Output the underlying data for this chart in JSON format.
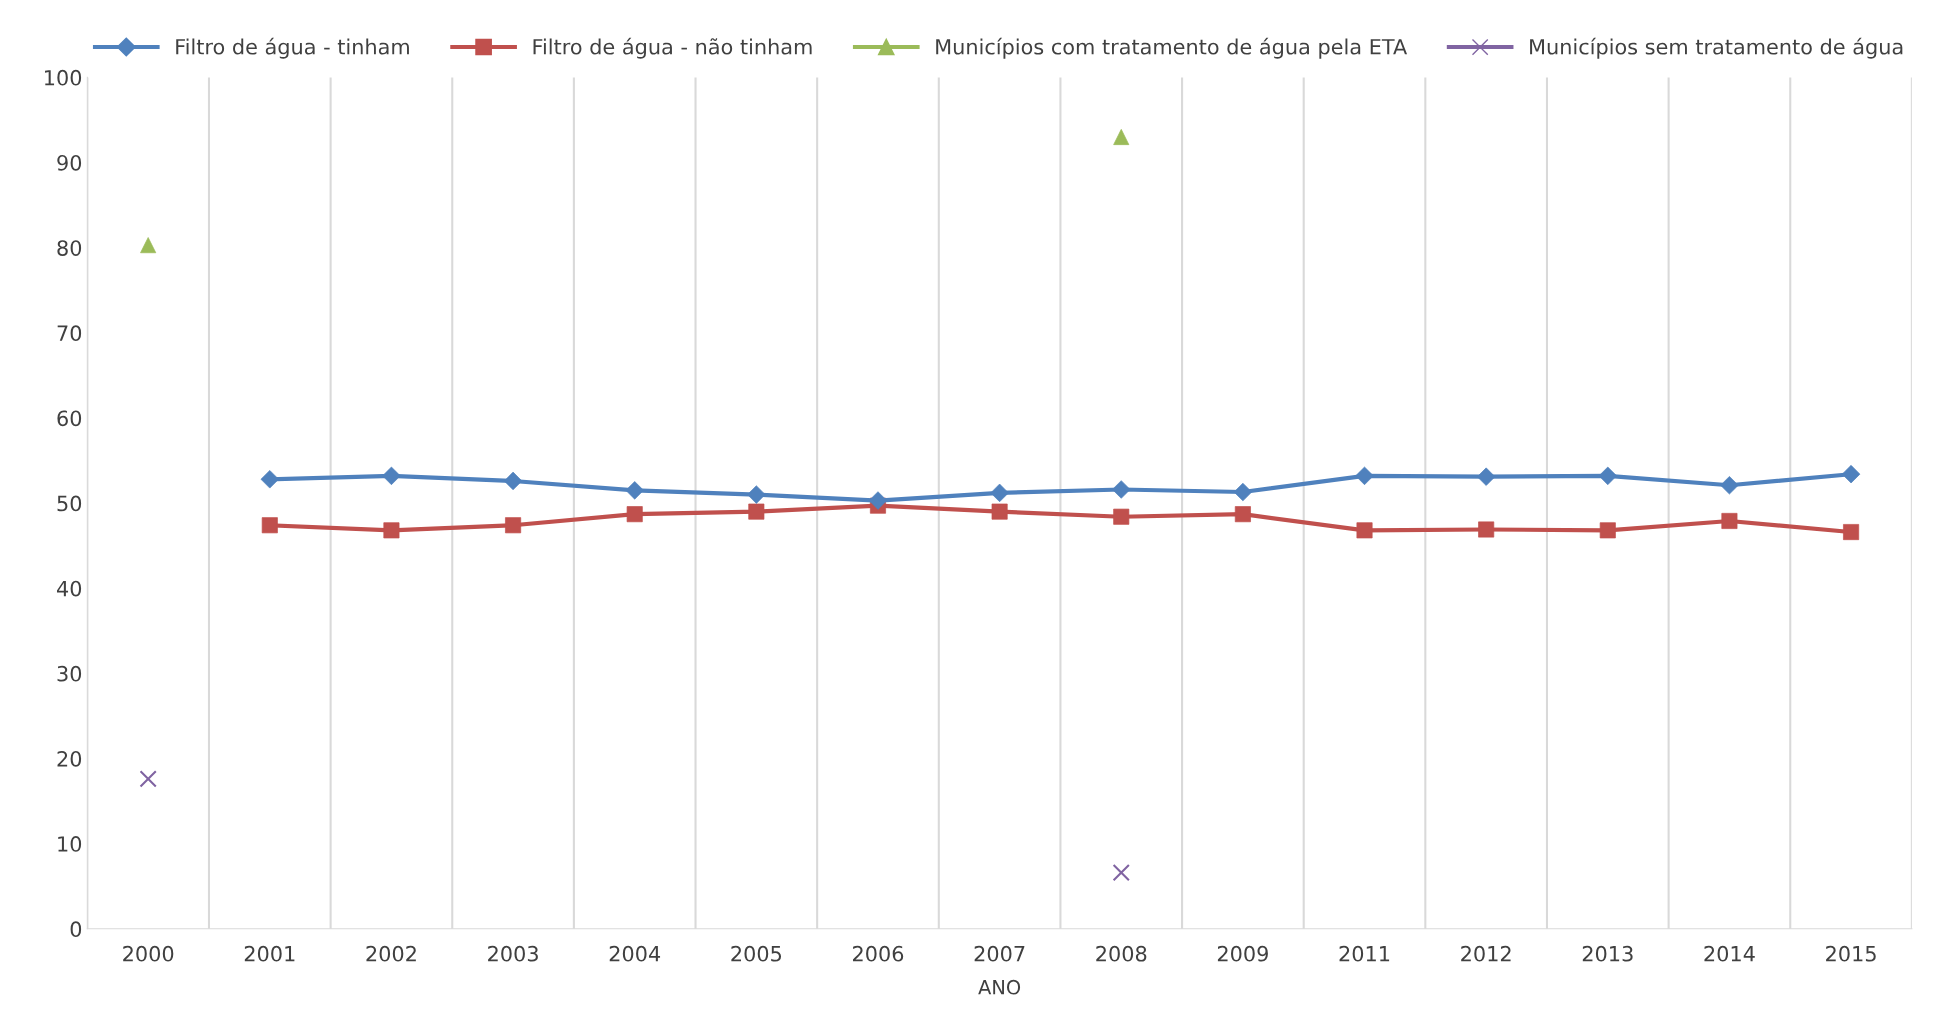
{
  "chart_data": {
    "type": "line",
    "xlabel": "ANO",
    "categories": [
      "2000",
      "2001",
      "2002",
      "2003",
      "2004",
      "2005",
      "2006",
      "2007",
      "2008",
      "2009",
      "2011",
      "2012",
      "2013",
      "2014",
      "2015"
    ],
    "series": [
      {
        "name": "Filtro de água - tinham",
        "color": "#4f81bd",
        "marker": "diamond",
        "values": [
          null,
          52.8,
          53.2,
          52.6,
          51.5,
          51.0,
          50.3,
          51.2,
          51.6,
          51.3,
          53.2,
          53.1,
          53.2,
          52.1,
          53.4
        ]
      },
      {
        "name": "Filtro de água - não tinham",
        "color": "#c0504d",
        "marker": "square",
        "values": [
          null,
          47.4,
          46.8,
          47.4,
          48.7,
          49.0,
          49.7,
          49.0,
          48.4,
          48.7,
          46.8,
          46.9,
          46.8,
          47.9,
          46.6
        ]
      },
      {
        "name": "Municípios com tratamento de água pela ETA",
        "type": "scatter",
        "color": "#9bbb59",
        "marker": "triangle",
        "values": [
          80.3,
          null,
          null,
          null,
          null,
          null,
          null,
          null,
          93.0,
          null,
          null,
          null,
          null,
          null,
          null
        ]
      },
      {
        "name": "Municípios sem tratamento de água",
        "type": "scatter",
        "color": "#8064a2",
        "marker": "cross",
        "values": [
          17.6,
          null,
          null,
          null,
          null,
          null,
          null,
          null,
          6.6,
          null,
          null,
          null,
          null,
          null,
          null
        ]
      }
    ],
    "ylim": [
      0,
      100
    ],
    "yticks": [
      0,
      10,
      20,
      30,
      40,
      50,
      60,
      70,
      80,
      90,
      100
    ],
    "grid": "x",
    "legend": "top"
  }
}
